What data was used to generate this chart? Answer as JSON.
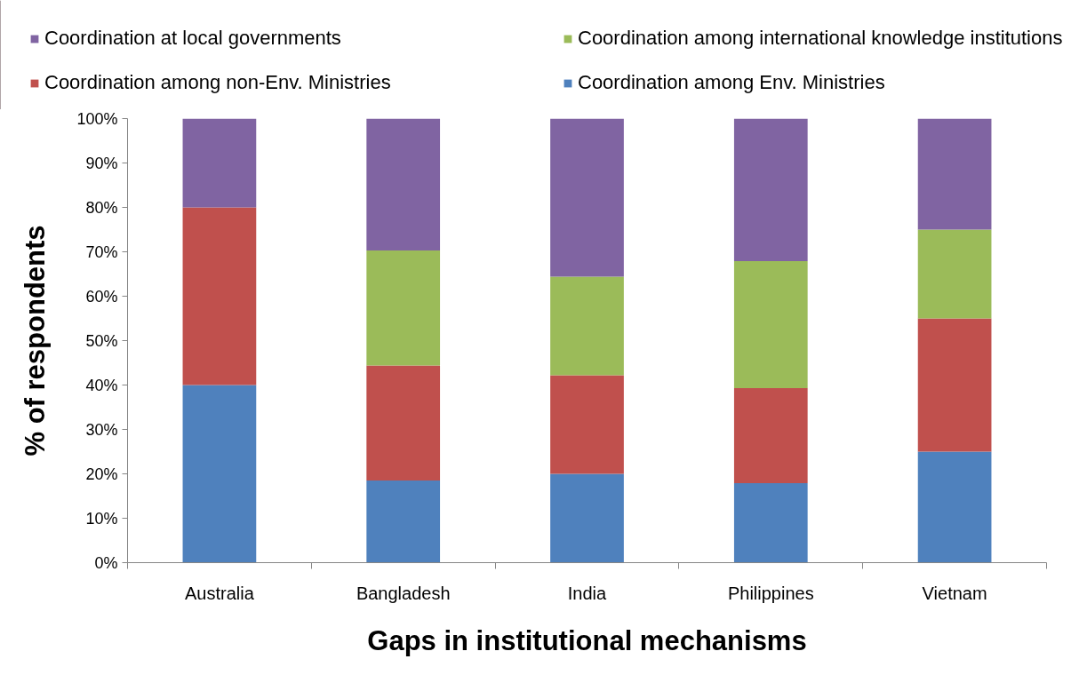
{
  "chart_data": {
    "type": "bar",
    "stacked": true,
    "xlabel": "Gaps in institutional mechanisms",
    "ylabel": "% of respondents",
    "categories": [
      "Australia",
      "Bangladesh",
      "India",
      "Philippines",
      "Vietnam"
    ],
    "series": [
      {
        "name": "Coordination among Env. Ministries",
        "color": "#4f81bd",
        "values": [
          40,
          18.5,
          20,
          17.9,
          25
        ]
      },
      {
        "name": "Coordination among non-Env. Ministries",
        "color": "#c0504d",
        "values": [
          40,
          25.9,
          22.2,
          21.4,
          30
        ]
      },
      {
        "name": "Coordination among international knowledge institutions",
        "color": "#9bbb59",
        "values": [
          0,
          25.9,
          22.2,
          28.6,
          20
        ]
      },
      {
        "name": "Coordination at local governments",
        "color": "#8064a2",
        "values": [
          20,
          29.7,
          35.6,
          32.1,
          25
        ]
      }
    ],
    "ylim": [
      0,
      100
    ],
    "yticks": [
      {
        "value": 0,
        "label": "0%"
      },
      {
        "value": 10,
        "label": "10%"
      },
      {
        "value": 20,
        "label": "20%"
      },
      {
        "value": 30,
        "label": "30%"
      },
      {
        "value": 40,
        "label": "40%"
      },
      {
        "value": 50,
        "label": "50%"
      },
      {
        "value": 60,
        "label": "60%"
      },
      {
        "value": 70,
        "label": "70%"
      },
      {
        "value": 80,
        "label": "80%"
      },
      {
        "value": 90,
        "label": "90%"
      },
      {
        "value": 100,
        "label": "100%"
      }
    ],
    "legend": "top"
  }
}
